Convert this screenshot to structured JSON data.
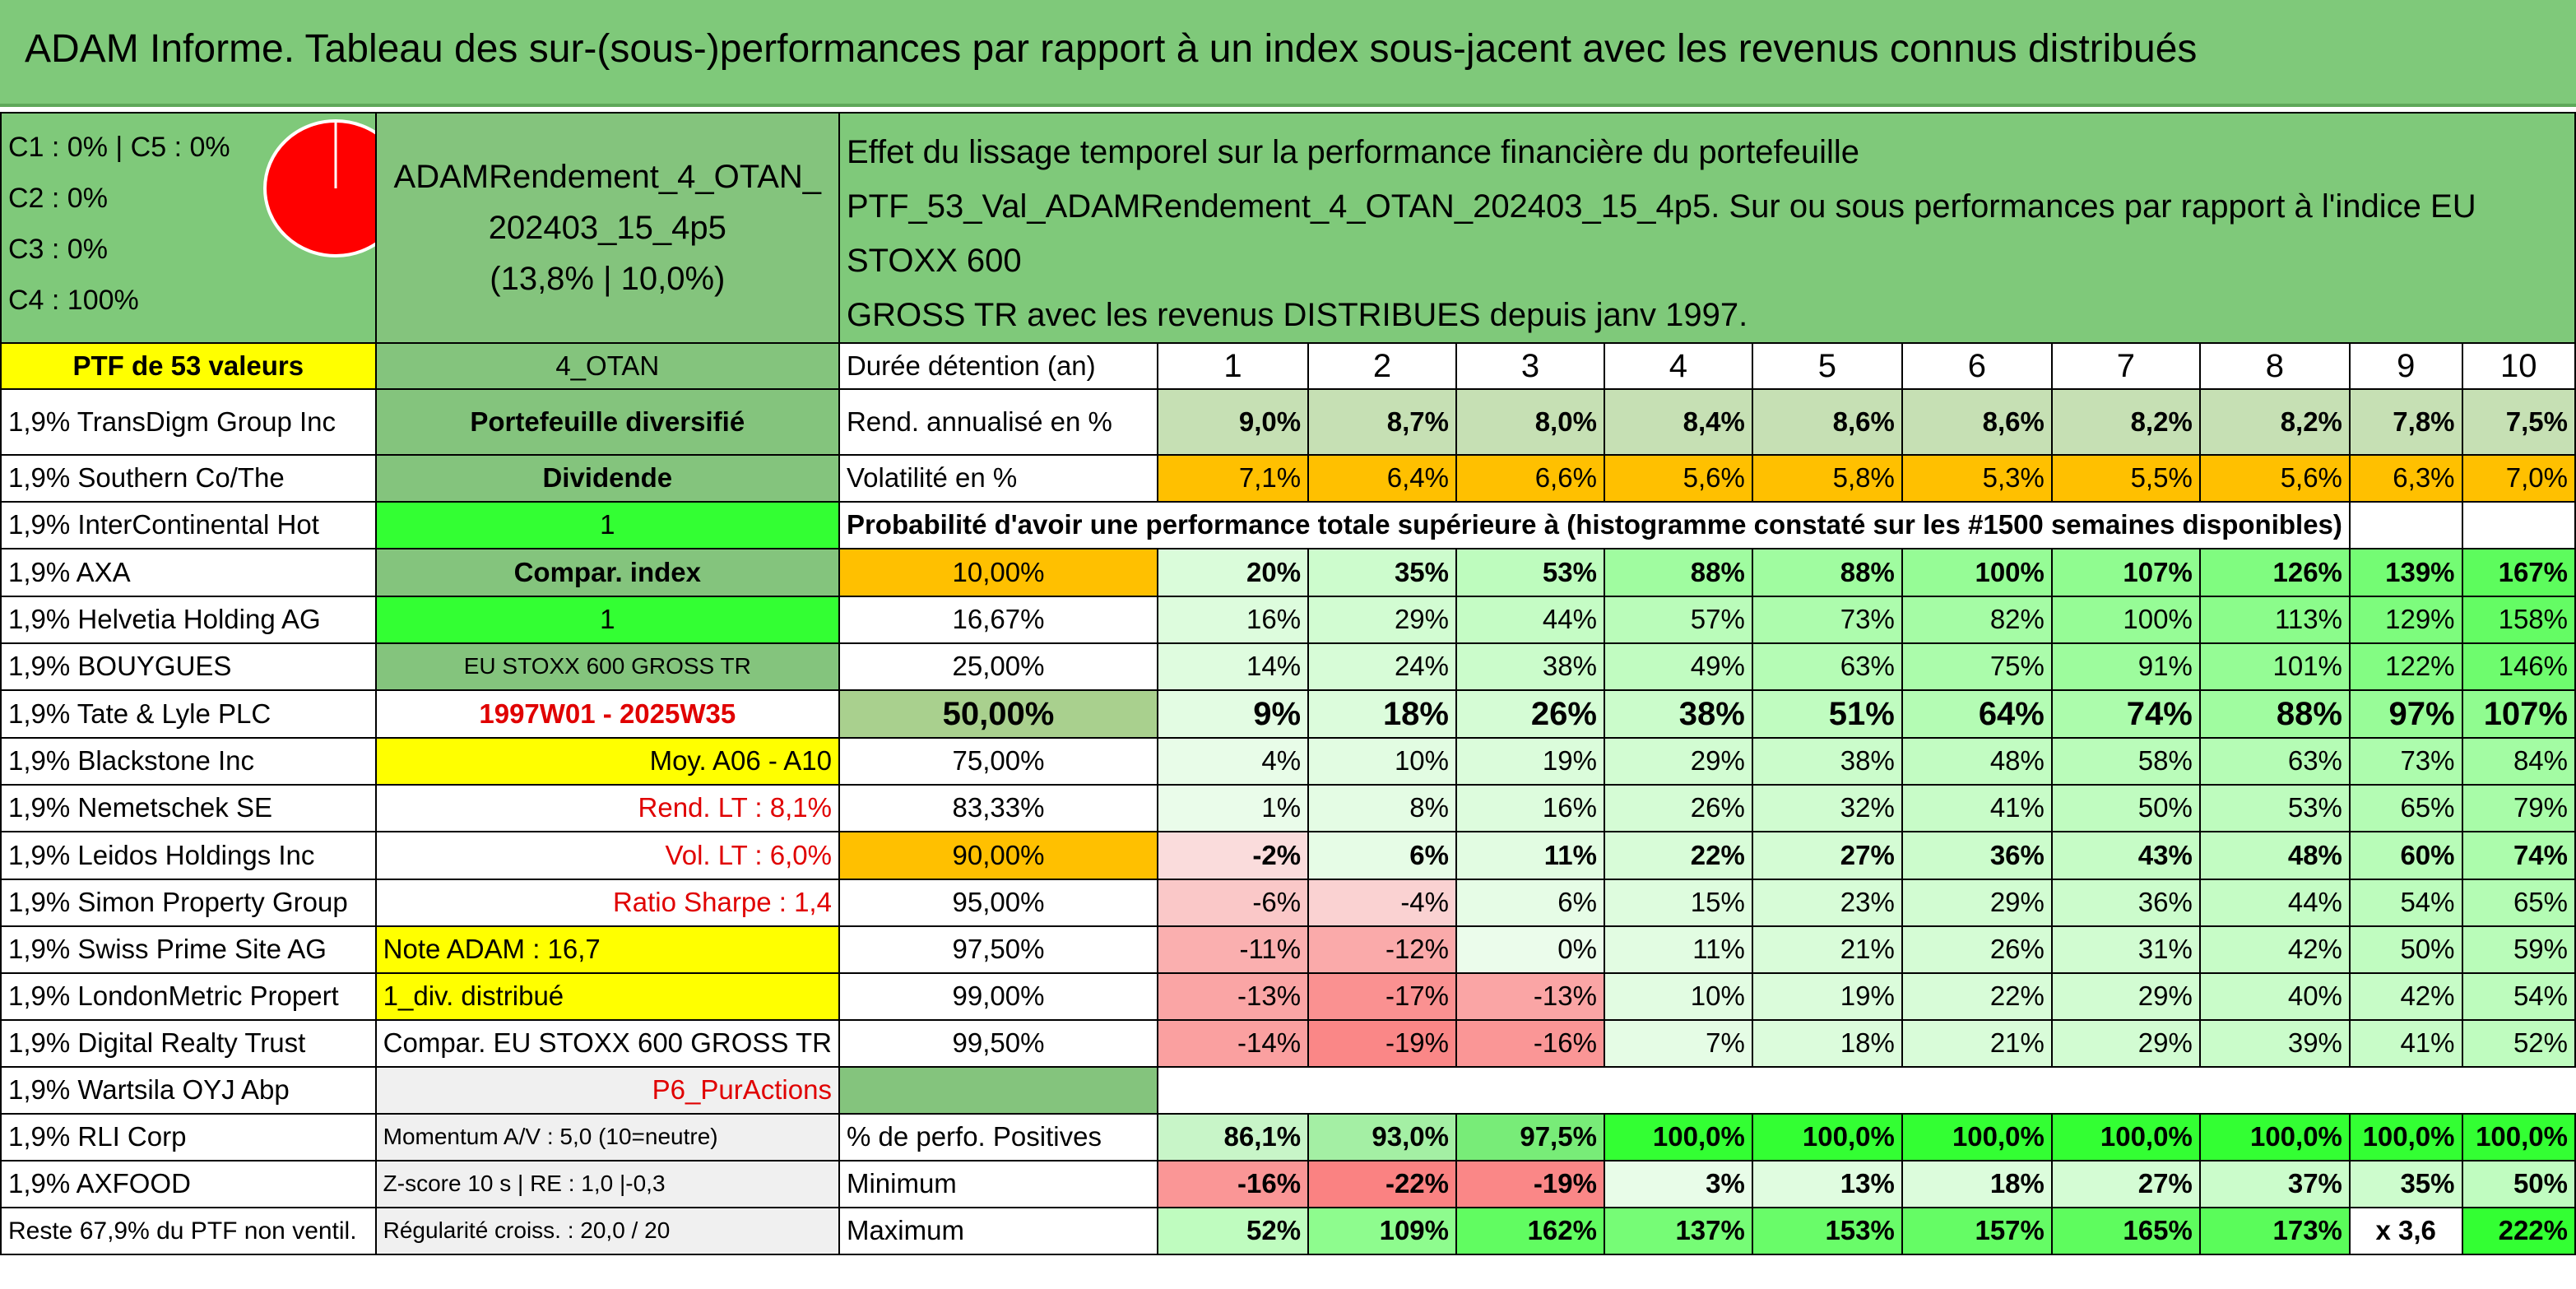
{
  "title": "ADAM Informe. Tableau des sur-(sous-)performances par rapport à un index sous-jacent avec les revenus connus distribués",
  "header": {
    "legend_lines": [
      "C1 : 0% | C5 : 0%",
      "C2 : 0%",
      "C3 : 0%",
      "C4 : 100%"
    ],
    "portfolio_name_line1": "ADAMRendement_4_OTAN_",
    "portfolio_name_line2": "202403_15_4p5",
    "portfolio_name_line3": "(13,8% | 10,0%)",
    "description_line1": "Effet du lissage temporel sur la performance financière du portefeuille",
    "description_line2": "PTF_53_Val_ADAMRendement_4_OTAN_202403_15_4p5. Sur ou sous performances par rapport à l'indice EU STOXX 600",
    "description_line3": "GROSS TR avec les revenus DISTRIBUES depuis janv 1997."
  },
  "pie": {
    "C1": 0,
    "C2": 0,
    "C3": 0,
    "C4": 100,
    "C5": 0,
    "color": "#ff0000"
  },
  "holdings_header": "PTF de 53 valeurs",
  "holdings": [
    "1,9% TransDigm Group Inc",
    "1,9% Southern Co/The",
    "1,9% InterContinental Hot",
    "1,9% AXA",
    "1,9% Helvetia Holding AG",
    "1,9% BOUYGUES",
    "1,9% Tate & Lyle PLC",
    "1,9% Blackstone Inc",
    "1,9% Nemetschek SE",
    "1,9% Leidos Holdings Inc",
    "1,9% Simon Property Group",
    "1,9% Swiss Prime Site AG",
    "1,9% LondonMetric Propert",
    "1,9% Digital Realty Trust",
    "1,9% Wartsila OYJ Abp",
    "1,9% RLI Corp",
    "1,9% AXFOOD",
    "Reste 67,9% du PTF non ventil."
  ],
  "side_panel": {
    "code": "4_OTAN",
    "type": "Portefeuille diversifié",
    "label_dividende": "Dividende",
    "val_1a": "1",
    "label_compar": "Compar. index",
    "val_1b": "1",
    "index_name": "EU STOXX 600 GROSS TR",
    "period": "1997W01 - 2025W35",
    "moy": "Moy. A06 - A10",
    "rend_lt": "Rend. LT : 8,1%",
    "vol_lt": "Vol. LT : 6,0%",
    "sharpe": "Ratio Sharpe : 1,4",
    "note": "Note ADAM : 16,7",
    "div": "1_div. distribué",
    "compar_full": "Compar. EU STOXX 600 GROSS TR",
    "action": "P6_PurActions",
    "momentum": "Momentum A/V : 5,0 (10=neutre)",
    "zscore": "Z-score 10 s | RE : 1,0 |-0,3",
    "regularite": "Régularité croiss. : 20,0 / 20"
  },
  "table": {
    "duration_label": "Durée détention (an)",
    "years": [
      "1",
      "2",
      "3",
      "4",
      "5",
      "6",
      "7",
      "8",
      "9",
      "10"
    ],
    "rend_label": "Rend. annualisé en %",
    "rend": [
      "9,0%",
      "8,7%",
      "8,0%",
      "8,4%",
      "8,6%",
      "8,6%",
      "8,2%",
      "8,2%",
      "7,8%",
      "7,5%"
    ],
    "vol_label": "Volatilité en %",
    "vol": [
      "7,1%",
      "6,4%",
      "6,6%",
      "5,6%",
      "5,8%",
      "5,3%",
      "5,5%",
      "5,6%",
      "6,3%",
      "7,0%"
    ],
    "prob_title": "Probabilité d'avoir une performance totale supérieure à (histogramme constaté sur les #1500 semaines disponibles)",
    "prob_rows": [
      {
        "label": "10,00%",
        "values": [
          "20%",
          "35%",
          "53%",
          "88%",
          "88%",
          "100%",
          "107%",
          "126%",
          "139%",
          "167%"
        ]
      },
      {
        "label": "16,67%",
        "values": [
          "16%",
          "29%",
          "44%",
          "57%",
          "73%",
          "82%",
          "100%",
          "113%",
          "129%",
          "158%"
        ]
      },
      {
        "label": "25,00%",
        "values": [
          "14%",
          "24%",
          "38%",
          "49%",
          "63%",
          "75%",
          "91%",
          "101%",
          "122%",
          "146%"
        ]
      },
      {
        "label": "50,00%",
        "values": [
          "9%",
          "18%",
          "26%",
          "38%",
          "51%",
          "64%",
          "74%",
          "88%",
          "97%",
          "107%"
        ]
      },
      {
        "label": "75,00%",
        "values": [
          "4%",
          "10%",
          "19%",
          "29%",
          "38%",
          "48%",
          "58%",
          "63%",
          "73%",
          "84%"
        ]
      },
      {
        "label": "83,33%",
        "values": [
          "1%",
          "8%",
          "16%",
          "26%",
          "32%",
          "41%",
          "50%",
          "53%",
          "65%",
          "79%"
        ]
      },
      {
        "label": "90,00%",
        "values": [
          "-2%",
          "6%",
          "11%",
          "22%",
          "27%",
          "36%",
          "43%",
          "48%",
          "60%",
          "74%"
        ]
      },
      {
        "label": "95,00%",
        "values": [
          "-6%",
          "-4%",
          "6%",
          "15%",
          "23%",
          "29%",
          "36%",
          "44%",
          "54%",
          "65%"
        ]
      },
      {
        "label": "97,50%",
        "values": [
          "-11%",
          "-12%",
          "0%",
          "11%",
          "21%",
          "26%",
          "31%",
          "42%",
          "50%",
          "59%"
        ]
      },
      {
        "label": "99,00%",
        "values": [
          "-13%",
          "-17%",
          "-13%",
          "10%",
          "19%",
          "22%",
          "29%",
          "40%",
          "42%",
          "54%"
        ]
      },
      {
        "label": "99,50%",
        "values": [
          "-14%",
          "-19%",
          "-16%",
          "7%",
          "18%",
          "21%",
          "29%",
          "39%",
          "41%",
          "52%"
        ]
      }
    ],
    "pos_label": "% de perfo. Positives",
    "pos": [
      "86,1%",
      "93,0%",
      "97,5%",
      "100,0%",
      "100,0%",
      "100,0%",
      "100,0%",
      "100,0%",
      "100,0%",
      "100,0%"
    ],
    "min_label": "Minimum",
    "min": [
      "-16%",
      "-22%",
      "-19%",
      "3%",
      "13%",
      "18%",
      "27%",
      "37%",
      "35%",
      "50%"
    ],
    "max_label": "Maximum",
    "max": [
      "52%",
      "109%",
      "162%",
      "137%",
      "153%",
      "157%",
      "165%",
      "173%",
      "x 3,6",
      "222%"
    ]
  },
  "colors": {
    "header_green": "#7fc97a",
    "highlight_yellow": "#ffff00",
    "bright_green": "#33ff33",
    "orange": "#ffc000",
    "red_text": "#e00000"
  }
}
